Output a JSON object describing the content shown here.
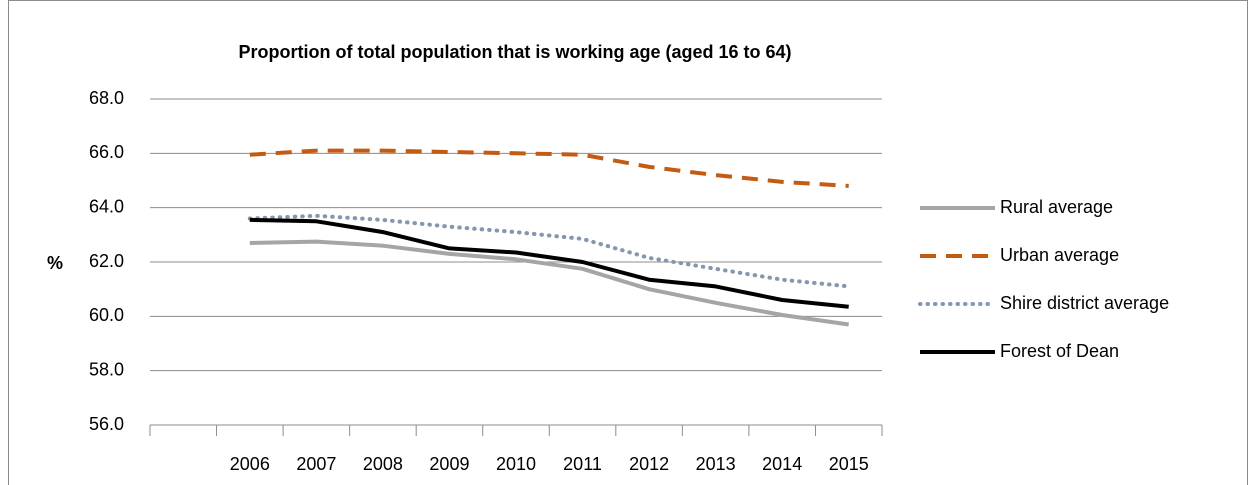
{
  "chart_data": {
    "type": "line",
    "title": "Proportion of total population that is working age (aged 16 to 64)",
    "y_label": "%",
    "categories": [
      null,
      "2006",
      "2007",
      "2008",
      "2009",
      "2010",
      "2011",
      "2012",
      "2013",
      "2014",
      "2015"
    ],
    "series": [
      {
        "name": "Rural average",
        "color": "#a5a5a5",
        "style": "solid",
        "values": [
          null,
          62.7,
          62.75,
          62.6,
          62.3,
          62.1,
          61.75,
          61.0,
          60.5,
          60.05,
          59.7
        ]
      },
      {
        "name": "Urban average",
        "color": "#c55a11",
        "style": "dashed",
        "values": [
          null,
          65.95,
          66.1,
          66.1,
          66.05,
          66.0,
          65.95,
          65.5,
          65.2,
          64.95,
          64.8
        ]
      },
      {
        "name": "Shire district average",
        "color": "#8497b0",
        "style": "dotted",
        "values": [
          null,
          63.6,
          63.7,
          63.55,
          63.3,
          63.1,
          62.85,
          62.15,
          61.75,
          61.35,
          61.1
        ]
      },
      {
        "name": "Forest of Dean",
        "color": "#000000",
        "style": "solid",
        "values": [
          null,
          63.55,
          63.5,
          63.1,
          62.5,
          62.35,
          62.0,
          61.35,
          61.1,
          60.6,
          60.35
        ]
      }
    ],
    "ylim": [
      56,
      68
    ],
    "yticks": [
      {
        "value": 56,
        "label": "56.0"
      },
      {
        "value": 58,
        "label": "58.0"
      },
      {
        "value": 60,
        "label": "60.0"
      },
      {
        "value": 62,
        "label": "62.0"
      },
      {
        "value": 64,
        "label": "64.0"
      },
      {
        "value": 66,
        "label": "66.0"
      },
      {
        "value": 68,
        "label": "68.0"
      }
    ],
    "grid": true,
    "legend": "right"
  }
}
